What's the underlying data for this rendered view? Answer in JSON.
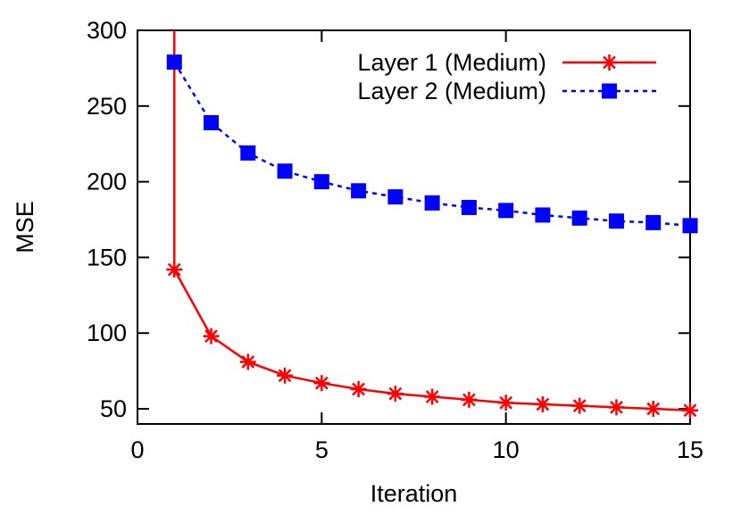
{
  "chart_data": {
    "type": "line",
    "title": "",
    "xlabel": "Iteration",
    "ylabel": "MSE",
    "xlim": [
      0,
      15
    ],
    "ylim": [
      40,
      300
    ],
    "xticks": [
      0,
      5,
      10,
      15
    ],
    "yticks": [
      50,
      100,
      150,
      200,
      250,
      300
    ],
    "grid": false,
    "legend_position": "top-right",
    "series": [
      {
        "name": "Layer 1 (Medium)",
        "color": "#ff0000",
        "line_style": "solid",
        "marker": "asterisk",
        "x": [
          1,
          1,
          2,
          3,
          4,
          5,
          6,
          7,
          8,
          9,
          10,
          11,
          12,
          13,
          14,
          15
        ],
        "y": [
          300,
          142,
          98,
          81,
          72,
          67,
          63,
          60,
          58,
          56,
          54,
          53,
          52,
          51,
          50,
          49
        ],
        "markers_from_index": 1
      },
      {
        "name": "Layer 2 (Medium)",
        "color": "#0000ff",
        "line_style": "dotted",
        "marker": "filled-square",
        "x": [
          1,
          2,
          3,
          4,
          5,
          6,
          7,
          8,
          9,
          10,
          11,
          12,
          13,
          14,
          15
        ],
        "y": [
          279,
          239,
          219,
          207,
          200,
          194,
          190,
          186,
          183,
          181,
          178,
          176,
          174,
          173,
          171
        ],
        "markers_from_index": 0
      }
    ]
  }
}
